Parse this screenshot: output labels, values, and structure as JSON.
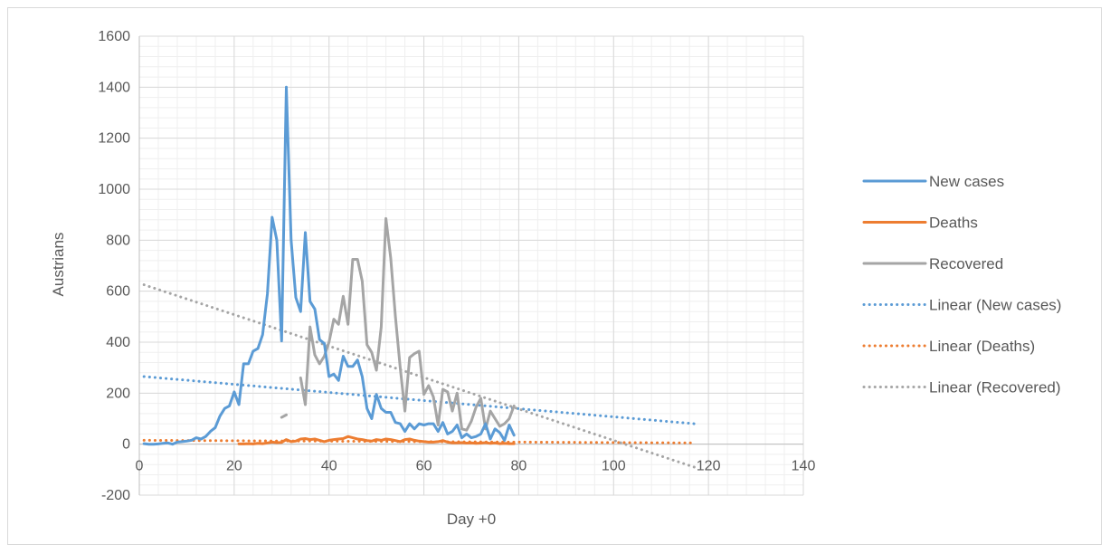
{
  "chart_data": {
    "type": "line",
    "title": "",
    "xlabel": "Day +0",
    "ylabel": "Austrians",
    "xlim": [
      0,
      140
    ],
    "ylim": [
      -200,
      1600
    ],
    "x_ticks": [
      0,
      20,
      40,
      60,
      80,
      100,
      120,
      140
    ],
    "y_ticks": [
      -200,
      0,
      200,
      400,
      600,
      800,
      1000,
      1200,
      1400,
      1600
    ],
    "grid": "major and minor",
    "legend_position": "right",
    "series": [
      {
        "name": "New cases",
        "color": "#5b9bd5",
        "style": "solid",
        "points": [
          [
            1,
            2
          ],
          [
            2,
            0
          ],
          [
            3,
            0
          ],
          [
            4,
            1
          ],
          [
            5,
            3
          ],
          [
            6,
            5
          ],
          [
            7,
            0
          ],
          [
            8,
            8
          ],
          [
            9,
            10
          ],
          [
            10,
            12
          ],
          [
            11,
            15
          ],
          [
            12,
            25
          ],
          [
            13,
            20
          ],
          [
            14,
            30
          ],
          [
            15,
            50
          ],
          [
            16,
            65
          ],
          [
            17,
            110
          ],
          [
            18,
            140
          ],
          [
            19,
            150
          ],
          [
            20,
            205
          ],
          [
            21,
            155
          ],
          [
            22,
            315
          ],
          [
            23,
            315
          ],
          [
            24,
            365
          ],
          [
            25,
            375
          ],
          [
            26,
            430
          ],
          [
            27,
            590
          ],
          [
            28,
            890
          ],
          [
            29,
            800
          ],
          [
            30,
            405
          ],
          [
            31,
            1400
          ],
          [
            32,
            800
          ],
          [
            33,
            575
          ],
          [
            34,
            520
          ],
          [
            35,
            830
          ],
          [
            36,
            560
          ],
          [
            37,
            530
          ],
          [
            38,
            410
          ],
          [
            39,
            395
          ],
          [
            40,
            265
          ],
          [
            41,
            275
          ],
          [
            42,
            250
          ],
          [
            43,
            345
          ],
          [
            44,
            305
          ],
          [
            45,
            305
          ],
          [
            46,
            330
          ],
          [
            47,
            265
          ],
          [
            48,
            140
          ],
          [
            49,
            100
          ],
          [
            50,
            195
          ],
          [
            51,
            140
          ],
          [
            52,
            125
          ],
          [
            53,
            125
          ],
          [
            54,
            85
          ],
          [
            55,
            80
          ],
          [
            56,
            50
          ],
          [
            57,
            80
          ],
          [
            58,
            60
          ],
          [
            59,
            80
          ],
          [
            60,
            75
          ],
          [
            61,
            80
          ],
          [
            62,
            80
          ],
          [
            63,
            50
          ],
          [
            64,
            85
          ],
          [
            65,
            40
          ],
          [
            66,
            50
          ],
          [
            67,
            75
          ],
          [
            68,
            25
          ],
          [
            69,
            40
          ],
          [
            70,
            25
          ],
          [
            71,
            30
          ],
          [
            72,
            40
          ],
          [
            73,
            80
          ],
          [
            74,
            20
          ],
          [
            75,
            60
          ],
          [
            76,
            45
          ],
          [
            77,
            15
          ],
          [
            78,
            75
          ],
          [
            79,
            35
          ]
        ]
      },
      {
        "name": "Deaths",
        "color": "#ed7d31",
        "style": "solid",
        "points": [
          [
            21,
            1
          ],
          [
            22,
            1
          ],
          [
            23,
            2
          ],
          [
            24,
            1
          ],
          [
            25,
            3
          ],
          [
            26,
            2
          ],
          [
            27,
            5
          ],
          [
            28,
            8
          ],
          [
            29,
            6
          ],
          [
            30,
            7
          ],
          [
            31,
            18
          ],
          [
            32,
            10
          ],
          [
            33,
            12
          ],
          [
            34,
            20
          ],
          [
            35,
            22
          ],
          [
            36,
            18
          ],
          [
            37,
            20
          ],
          [
            38,
            15
          ],
          [
            39,
            10
          ],
          [
            40,
            15
          ],
          [
            41,
            18
          ],
          [
            42,
            20
          ],
          [
            43,
            22
          ],
          [
            44,
            30
          ],
          [
            45,
            25
          ],
          [
            46,
            20
          ],
          [
            47,
            18
          ],
          [
            48,
            14
          ],
          [
            49,
            12
          ],
          [
            50,
            18
          ],
          [
            51,
            15
          ],
          [
            52,
            20
          ],
          [
            53,
            18
          ],
          [
            54,
            14
          ],
          [
            55,
            10
          ],
          [
            56,
            18
          ],
          [
            57,
            20
          ],
          [
            58,
            15
          ],
          [
            59,
            12
          ],
          [
            60,
            10
          ],
          [
            61,
            8
          ],
          [
            62,
            8
          ],
          [
            63,
            10
          ],
          [
            64,
            14
          ],
          [
            65,
            8
          ],
          [
            66,
            5
          ],
          [
            67,
            5
          ],
          [
            68,
            6
          ],
          [
            69,
            4
          ],
          [
            70,
            5
          ],
          [
            71,
            3
          ],
          [
            72,
            4
          ],
          [
            73,
            6
          ],
          [
            74,
            3
          ],
          [
            75,
            5
          ],
          [
            76,
            2
          ],
          [
            77,
            3
          ],
          [
            78,
            2
          ],
          [
            79,
            2
          ]
        ]
      },
      {
        "name": "Recovered",
        "color": "#a5a5a5",
        "style": "solid",
        "segments": [
          [
            [
              30,
              105
            ],
            [
              31,
              115
            ]
          ],
          [
            [
              34,
              260
            ],
            [
              35,
              155
            ],
            [
              36,
              460
            ],
            [
              37,
              350
            ],
            [
              38,
              315
            ],
            [
              39,
              345
            ],
            [
              40,
              400
            ],
            [
              41,
              490
            ],
            [
              42,
              470
            ],
            [
              43,
              580
            ],
            [
              44,
              470
            ],
            [
              45,
              725
            ],
            [
              46,
              725
            ],
            [
              47,
              640
            ],
            [
              48,
              390
            ],
            [
              49,
              360
            ],
            [
              50,
              290
            ],
            [
              51,
              460
            ],
            [
              52,
              885
            ],
            [
              53,
              730
            ],
            [
              54,
              500
            ],
            [
              55,
              300
            ],
            [
              56,
              130
            ],
            [
              57,
              340
            ],
            [
              58,
              355
            ],
            [
              59,
              365
            ],
            [
              60,
              195
            ],
            [
              61,
              230
            ],
            [
              62,
              185
            ],
            [
              63,
              75
            ],
            [
              64,
              215
            ],
            [
              65,
              205
            ],
            [
              66,
              130
            ],
            [
              67,
              200
            ],
            [
              68,
              60
            ],
            [
              69,
              55
            ],
            [
              70,
              90
            ],
            [
              71,
              145
            ],
            [
              72,
              180
            ],
            [
              73,
              60
            ],
            [
              74,
              130
            ],
            [
              75,
              100
            ],
            [
              76,
              70
            ],
            [
              77,
              80
            ],
            [
              78,
              100
            ],
            [
              79,
              150
            ]
          ]
        ]
      },
      {
        "name": "Linear (New cases)",
        "color": "#5b9bd5",
        "style": "dotted",
        "points": [
          [
            1,
            265
          ],
          [
            117,
            80
          ]
        ]
      },
      {
        "name": "Linear (Deaths)",
        "color": "#ed7d31",
        "style": "dotted",
        "points": [
          [
            1,
            15
          ],
          [
            117,
            5
          ]
        ]
      },
      {
        "name": "Linear (Recovered)",
        "color": "#a5a5a5",
        "style": "dotted",
        "points": [
          [
            1,
            625
          ],
          [
            117,
            -90
          ]
        ]
      }
    ]
  }
}
